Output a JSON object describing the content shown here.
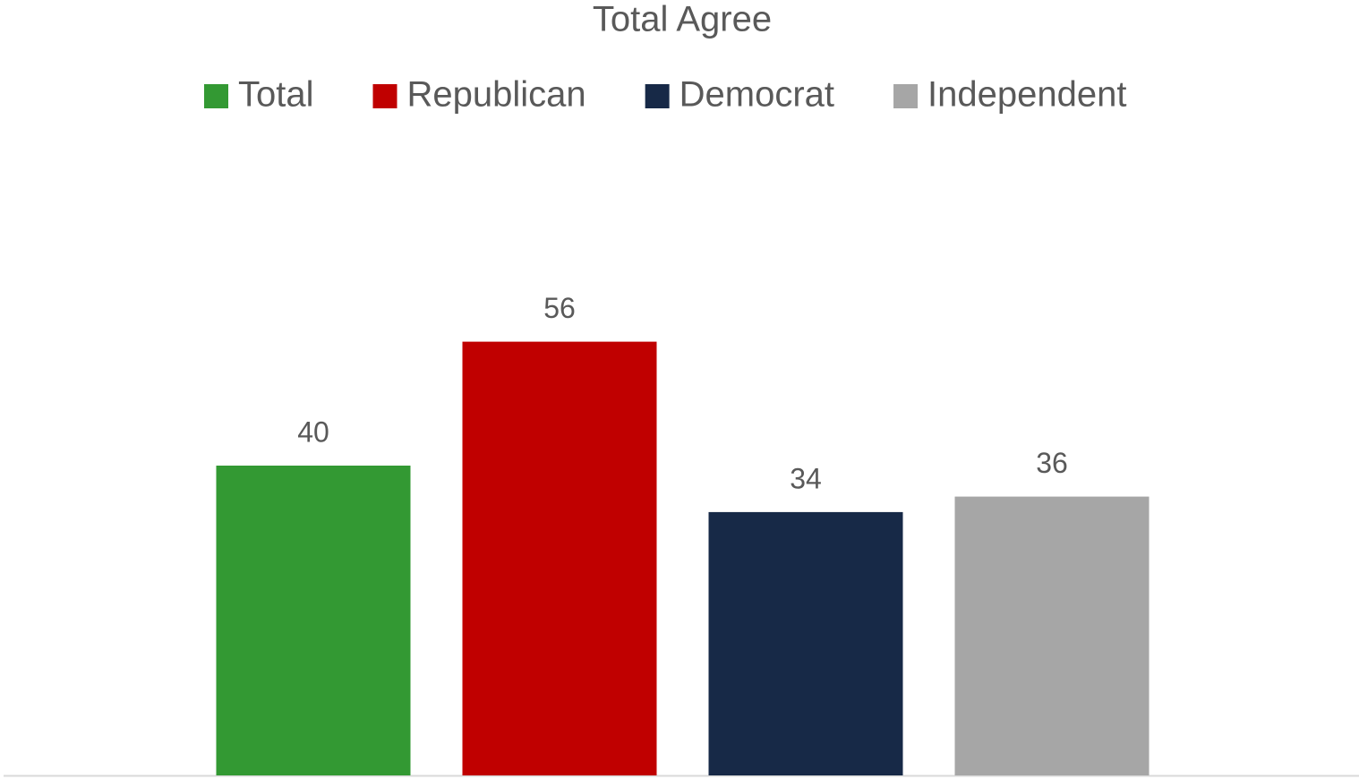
{
  "chart_data": {
    "type": "bar",
    "title": "Total Agree",
    "categories": [
      null
    ],
    "series": [
      {
        "name": "Total",
        "color": "#339933",
        "values": [
          40
        ]
      },
      {
        "name": "Republican",
        "color": "#c00000",
        "values": [
          56
        ]
      },
      {
        "name": "Democrat",
        "color": "#172947",
        "values": [
          34
        ]
      },
      {
        "name": "Independent",
        "color": "#a6a6a6",
        "values": [
          36
        ]
      }
    ],
    "ylim": [
      0,
      60
    ],
    "grid": false,
    "legend": "top"
  }
}
